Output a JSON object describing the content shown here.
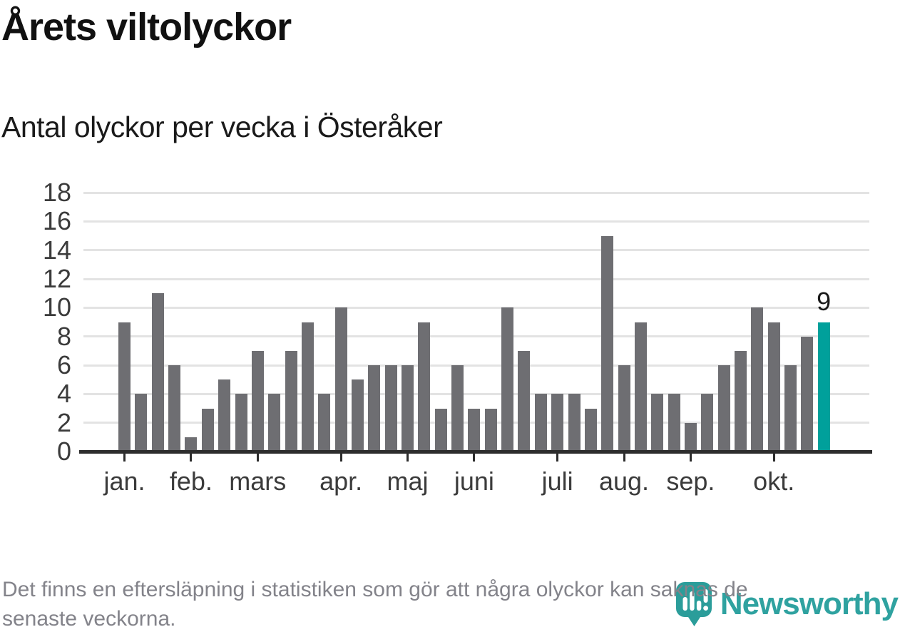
{
  "header": {
    "title": "Årets viltolyckor",
    "subtitle": "Antal olyckor per vecka i Österåker"
  },
  "chart_data": {
    "type": "bar",
    "title": "Årets viltolyckor",
    "subtitle": "Antal olyckor per vecka i Österåker",
    "x_unit": "vecka",
    "ylim": [
      0,
      18
    ],
    "y_ticks": [
      0,
      2,
      4,
      6,
      8,
      10,
      12,
      14,
      16,
      18
    ],
    "grid": "horizontal",
    "legend": "none",
    "values": [
      9,
      4,
      11,
      6,
      1,
      3,
      5,
      4,
      7,
      4,
      7,
      9,
      4,
      10,
      5,
      6,
      6,
      6,
      9,
      3,
      6,
      3,
      3,
      10,
      7,
      4,
      4,
      4,
      3,
      15,
      6,
      9,
      4,
      4,
      2,
      4,
      6,
      7,
      10,
      9,
      6,
      8,
      9
    ],
    "month_ticks": [
      {
        "label": "jan.",
        "bar_index": 0
      },
      {
        "label": "feb.",
        "bar_index": 4
      },
      {
        "label": "mars",
        "bar_index": 8
      },
      {
        "label": "apr.",
        "bar_index": 13
      },
      {
        "label": "maj",
        "bar_index": 17
      },
      {
        "label": "juni",
        "bar_index": 21
      },
      {
        "label": "juli",
        "bar_index": 26
      },
      {
        "label": "aug.",
        "bar_index": 30
      },
      {
        "label": "sep.",
        "bar_index": 34
      },
      {
        "label": "okt.",
        "bar_index": 39
      }
    ],
    "highlight_last_bar": true,
    "last_bar_label": "9",
    "colors": {
      "bar": "#6e6e72",
      "highlight": "#00a09b",
      "gridline": "#e3e3e3",
      "axis": "#2d2d2d",
      "axis_label": "#3b3b3b",
      "annotation": "#1a1a1a"
    }
  },
  "footer": {
    "note_line1": "Det finns en eftersläpning i statistiken som gör att några olyckor kan saknas de",
    "note_line2": "senaste veckorna.",
    "brand": "Newsworthy",
    "brand_color": "#2fa2a0"
  }
}
